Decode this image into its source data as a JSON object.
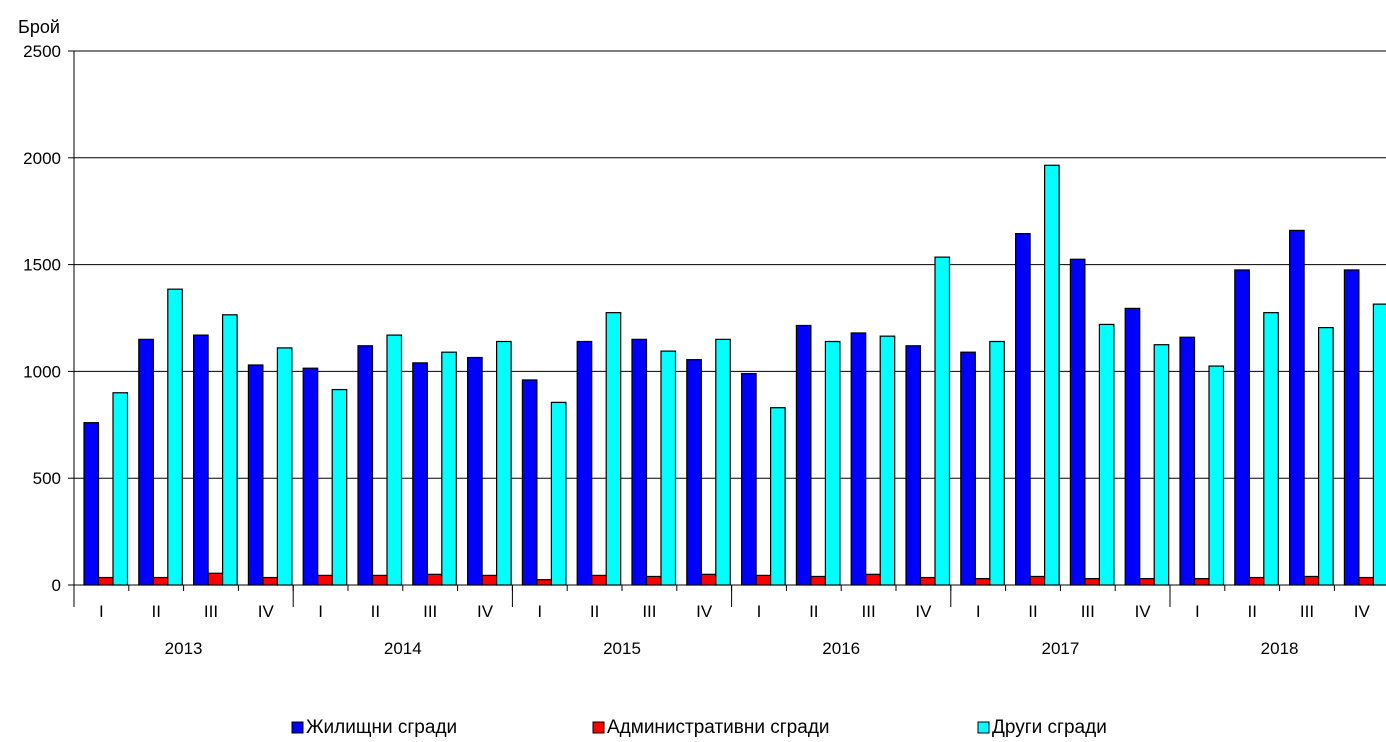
{
  "chart_data": {
    "type": "bar",
    "ylabel": "Брой",
    "ylim": [
      0,
      2500
    ],
    "yticks": [
      "0",
      "500",
      "1000",
      "1500",
      "2000",
      "2500"
    ],
    "grid": true,
    "legend_position": "bottom",
    "quarters": [
      "I",
      "II",
      "III",
      "IV",
      "I",
      "II",
      "III",
      "IV",
      "I",
      "II",
      "III",
      "IV",
      "I",
      "II",
      "III",
      "IV",
      "I",
      "II",
      "III",
      "IV",
      "I",
      "II",
      "III",
      "IV"
    ],
    "years": [
      "2013",
      "2014",
      "2015",
      "2016",
      "2017",
      "2018"
    ],
    "series": [
      {
        "name": "Жилищни сгради",
        "color": "#0000ff",
        "values": [
          760,
          1150,
          1170,
          1030,
          1015,
          1120,
          1040,
          1065,
          960,
          1140,
          1150,
          1055,
          990,
          1215,
          1180,
          1120,
          1090,
          1645,
          1525,
          1295,
          1160,
          1475,
          1660,
          1475
        ]
      },
      {
        "name": "Административни сгради",
        "color": "#ff0000",
        "values": [
          35,
          35,
          55,
          35,
          45,
          45,
          50,
          45,
          25,
          45,
          40,
          50,
          45,
          40,
          50,
          35,
          30,
          40,
          30,
          30,
          30,
          35,
          40,
          35
        ]
      },
      {
        "name": "Други сгради",
        "color": "#00ffff",
        "values": [
          900,
          1385,
          1265,
          1110,
          915,
          1170,
          1090,
          1140,
          855,
          1275,
          1095,
          1150,
          830,
          1140,
          1165,
          1535,
          1140,
          1965,
          1220,
          1125,
          1025,
          1275,
          1205,
          1315
        ]
      }
    ]
  }
}
